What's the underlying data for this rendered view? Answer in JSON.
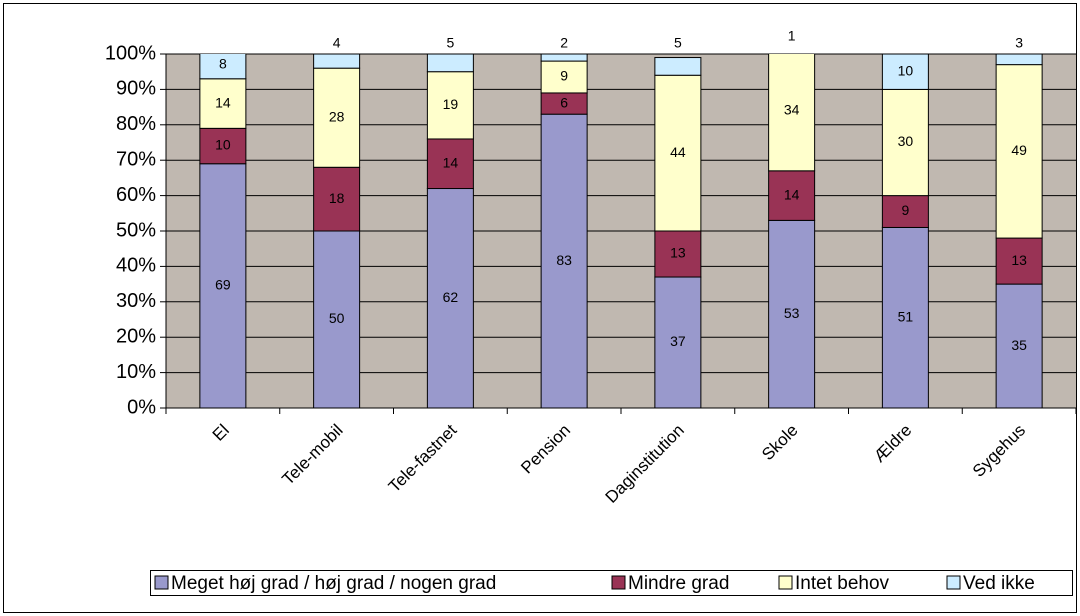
{
  "chart_data": {
    "type": "stacked_bar",
    "categories": [
      "El",
      "Tele-mobil",
      "Tele-fastnet",
      "Pension",
      "Daginstitution",
      "Skole",
      "Ældre",
      "Sygehus"
    ],
    "series": [
      {
        "name": "Meget høj grad / høj grad / nogen grad",
        "color": "#9999cc",
        "values": [
          69,
          50,
          62,
          83,
          37,
          53,
          51,
          35
        ]
      },
      {
        "name": "Mindre grad",
        "color": "#993355",
        "values": [
          10,
          18,
          14,
          6,
          13,
          14,
          9,
          13
        ]
      },
      {
        "name": "Intet behov",
        "color": "#ffffcc",
        "values": [
          14,
          28,
          19,
          9,
          44,
          34,
          30,
          49
        ]
      },
      {
        "name": "Ved ikke",
        "color": "#ccecff",
        "values": [
          8,
          4,
          5,
          2,
          5,
          1,
          10,
          3
        ]
      }
    ],
    "ylim": [
      0,
      100
    ],
    "yticks": [
      {
        "value": 0,
        "label": "0%"
      },
      {
        "value": 10,
        "label": "10%"
      },
      {
        "value": 20,
        "label": "20%"
      },
      {
        "value": 30,
        "label": "30%"
      },
      {
        "value": 40,
        "label": "40%"
      },
      {
        "value": 50,
        "label": "50%"
      },
      {
        "value": 60,
        "label": "60%"
      },
      {
        "value": 70,
        "label": "70%"
      },
      {
        "value": 80,
        "label": "80%"
      },
      {
        "value": 90,
        "label": "90%"
      },
      {
        "value": 100,
        "label": "100%"
      }
    ],
    "grid": true,
    "legend": "bottom",
    "plot_background": "#c0b8b0"
  }
}
